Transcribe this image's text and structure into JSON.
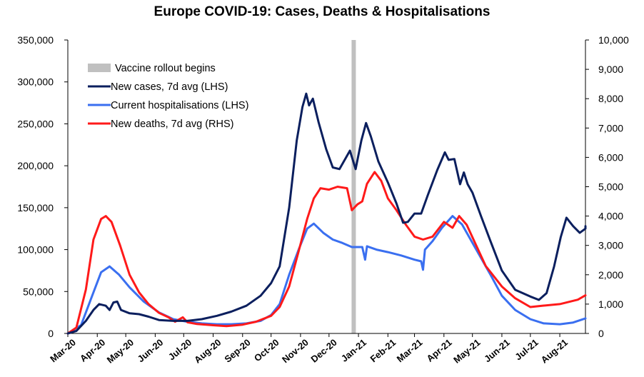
{
  "chart_data": {
    "type": "line",
    "title": "Europe COVID-19: Cases, Deaths & Hospitalisations",
    "x_labels": [
      "Mar-20",
      "Apr-20",
      "May-20",
      "Jun-20",
      "Jul-20",
      "Aug-20",
      "Sep-20",
      "Oct-20",
      "Nov-20",
      "Dec-20",
      "Jan-21",
      "Feb-21",
      "Mar-21",
      "Apr-21",
      "May-21",
      "Jun-21",
      "Jul-21",
      "Aug-21"
    ],
    "x_range": [
      "2020-03-01",
      "2021-08-28"
    ],
    "y_left": {
      "ylim": [
        0,
        350000
      ],
      "ticks": [
        "0",
        "50,000",
        "100,000",
        "150,000",
        "200,000",
        "250,000",
        "300,000",
        "350,000"
      ],
      "tick_values": [
        0,
        50000,
        100000,
        150000,
        200000,
        250000,
        300000,
        350000
      ]
    },
    "y_right": {
      "ylim": [
        0,
        10000
      ],
      "ticks": [
        "0",
        "1,000",
        "2,000",
        "3,000",
        "4,000",
        "5,000",
        "6,000",
        "7,000",
        "8,000",
        "9,000",
        "10,000"
      ],
      "tick_values": [
        0,
        1000,
        2000,
        3000,
        4000,
        5000,
        6000,
        7000,
        8000,
        9000,
        10000
      ]
    },
    "grid": false,
    "legend_position": "top-left",
    "annotations": [
      {
        "type": "vertical-band",
        "label": "Vaccine rollout begins",
        "x": "2020-12-27",
        "color": "#c0c0c0"
      }
    ],
    "series": [
      {
        "name": "New cases, 7d avg (LHS)",
        "axis": "left",
        "color": "#0b1f5e",
        "points": [
          [
            "2020-03-01",
            0
          ],
          [
            "2020-03-10",
            3000
          ],
          [
            "2020-03-20",
            15000
          ],
          [
            "2020-03-28",
            28000
          ],
          [
            "2020-04-03",
            35000
          ],
          [
            "2020-04-10",
            33000
          ],
          [
            "2020-04-14",
            28000
          ],
          [
            "2020-04-18",
            37000
          ],
          [
            "2020-04-22",
            38000
          ],
          [
            "2020-04-26",
            28000
          ],
          [
            "2020-05-05",
            24000
          ],
          [
            "2020-05-15",
            23000
          ],
          [
            "2020-05-25",
            20000
          ],
          [
            "2020-06-05",
            16000
          ],
          [
            "2020-06-20",
            15000
          ],
          [
            "2020-07-05",
            15000
          ],
          [
            "2020-07-20",
            17000
          ],
          [
            "2020-08-05",
            21000
          ],
          [
            "2020-08-20",
            26000
          ],
          [
            "2020-09-05",
            33000
          ],
          [
            "2020-09-20",
            45000
          ],
          [
            "2020-10-01",
            60000
          ],
          [
            "2020-10-10",
            80000
          ],
          [
            "2020-10-20",
            150000
          ],
          [
            "2020-10-28",
            230000
          ],
          [
            "2020-11-03",
            270000
          ],
          [
            "2020-11-07",
            286000
          ],
          [
            "2020-11-10",
            272000
          ],
          [
            "2020-11-14",
            280000
          ],
          [
            "2020-11-20",
            252000
          ],
          [
            "2020-11-28",
            220000
          ],
          [
            "2020-12-05",
            198000
          ],
          [
            "2020-12-12",
            196000
          ],
          [
            "2020-12-19",
            210000
          ],
          [
            "2020-12-23",
            218000
          ],
          [
            "2020-12-29",
            196000
          ],
          [
            "2021-01-04",
            230000
          ],
          [
            "2021-01-09",
            251000
          ],
          [
            "2021-01-14",
            235000
          ],
          [
            "2021-01-22",
            205000
          ],
          [
            "2021-02-01",
            180000
          ],
          [
            "2021-02-10",
            155000
          ],
          [
            "2021-02-17",
            132000
          ],
          [
            "2021-02-22",
            133000
          ],
          [
            "2021-03-01",
            143000
          ],
          [
            "2021-03-08",
            143000
          ],
          [
            "2021-03-15",
            165000
          ],
          [
            "2021-03-25",
            195000
          ],
          [
            "2021-04-02",
            216000
          ],
          [
            "2021-04-06",
            207000
          ],
          [
            "2021-04-12",
            208000
          ],
          [
            "2021-04-18",
            178000
          ],
          [
            "2021-04-22",
            192000
          ],
          [
            "2021-04-26",
            178000
          ],
          [
            "2021-05-01",
            168000
          ],
          [
            "2021-05-10",
            140000
          ],
          [
            "2021-05-20",
            110000
          ],
          [
            "2021-06-01",
            75000
          ],
          [
            "2021-06-15",
            52000
          ],
          [
            "2021-07-01",
            44000
          ],
          [
            "2021-07-10",
            40000
          ],
          [
            "2021-07-18",
            48000
          ],
          [
            "2021-07-26",
            80000
          ],
          [
            "2021-08-02",
            115000
          ],
          [
            "2021-08-08",
            138000
          ],
          [
            "2021-08-15",
            128000
          ],
          [
            "2021-08-22",
            120000
          ],
          [
            "2021-08-28",
            125000
          ],
          [
            "2021-09-02",
            128000
          ]
        ]
      },
      {
        "name": "Current hospitalisations (LHS)",
        "axis": "left",
        "color": "#3a6ff0",
        "points": [
          [
            "2020-03-01",
            0
          ],
          [
            "2020-03-15",
            10000
          ],
          [
            "2020-03-25",
            40000
          ],
          [
            "2020-04-05",
            73000
          ],
          [
            "2020-04-14",
            80000
          ],
          [
            "2020-04-24",
            70000
          ],
          [
            "2020-05-05",
            55000
          ],
          [
            "2020-05-20",
            38000
          ],
          [
            "2020-06-05",
            25000
          ],
          [
            "2020-06-20",
            17000
          ],
          [
            "2020-07-05",
            14000
          ],
          [
            "2020-07-20",
            12000
          ],
          [
            "2020-08-05",
            11000
          ],
          [
            "2020-08-20",
            11000
          ],
          [
            "2020-09-05",
            12000
          ],
          [
            "2020-09-20",
            15000
          ],
          [
            "2020-10-01",
            22000
          ],
          [
            "2020-10-10",
            35000
          ],
          [
            "2020-10-20",
            70000
          ],
          [
            "2020-10-30",
            100000
          ],
          [
            "2020-11-08",
            125000
          ],
          [
            "2020-11-15",
            131000
          ],
          [
            "2020-11-25",
            120000
          ],
          [
            "2020-12-05",
            112000
          ],
          [
            "2020-12-15",
            108000
          ],
          [
            "2020-12-25",
            103000
          ],
          [
            "2021-01-05",
            103000
          ],
          [
            "2021-01-08",
            88000
          ],
          [
            "2021-01-10",
            104000
          ],
          [
            "2021-01-20",
            100000
          ],
          [
            "2021-02-01",
            97000
          ],
          [
            "2021-02-15",
            93000
          ],
          [
            "2021-03-01",
            88000
          ],
          [
            "2021-03-08",
            86000
          ],
          [
            "2021-03-10",
            76000
          ],
          [
            "2021-03-12",
            100000
          ],
          [
            "2021-03-20",
            110000
          ],
          [
            "2021-03-30",
            126000
          ],
          [
            "2021-04-10",
            140000
          ],
          [
            "2021-04-20",
            130000
          ],
          [
            "2021-04-30",
            110000
          ],
          [
            "2021-05-10",
            90000
          ],
          [
            "2021-05-20",
            70000
          ],
          [
            "2021-06-01",
            45000
          ],
          [
            "2021-06-15",
            28000
          ],
          [
            "2021-07-01",
            17000
          ],
          [
            "2021-07-15",
            12000
          ],
          [
            "2021-08-01",
            11000
          ],
          [
            "2021-08-15",
            13000
          ],
          [
            "2021-09-02",
            18000
          ]
        ]
      },
      {
        "name": "New deaths, 7d avg (RHS)",
        "axis": "right",
        "color": "#ff1a1a",
        "points": [
          [
            "2020-03-01",
            0
          ],
          [
            "2020-03-10",
            200
          ],
          [
            "2020-03-20",
            1500
          ],
          [
            "2020-03-28",
            3200
          ],
          [
            "2020-04-05",
            3900
          ],
          [
            "2020-04-10",
            4000
          ],
          [
            "2020-04-16",
            3800
          ],
          [
            "2020-04-25",
            3000
          ],
          [
            "2020-05-05",
            2000
          ],
          [
            "2020-05-15",
            1400
          ],
          [
            "2020-05-25",
            1000
          ],
          [
            "2020-06-05",
            700
          ],
          [
            "2020-06-15",
            550
          ],
          [
            "2020-06-22",
            400
          ],
          [
            "2020-06-30",
            550
          ],
          [
            "2020-07-05",
            380
          ],
          [
            "2020-07-15",
            320
          ],
          [
            "2020-08-01",
            280
          ],
          [
            "2020-08-15",
            250
          ],
          [
            "2020-09-01",
            300
          ],
          [
            "2020-09-15",
            400
          ],
          [
            "2020-10-01",
            600
          ],
          [
            "2020-10-10",
            900
          ],
          [
            "2020-10-20",
            1600
          ],
          [
            "2020-10-30",
            2800
          ],
          [
            "2020-11-08",
            3900
          ],
          [
            "2020-11-15",
            4600
          ],
          [
            "2020-11-22",
            4950
          ],
          [
            "2020-12-01",
            4900
          ],
          [
            "2020-12-10",
            5000
          ],
          [
            "2020-12-20",
            4950
          ],
          [
            "2020-12-25",
            4200
          ],
          [
            "2020-12-31",
            4400
          ],
          [
            "2021-01-05",
            4500
          ],
          [
            "2021-01-10",
            5100
          ],
          [
            "2021-01-18",
            5500
          ],
          [
            "2021-01-25",
            5200
          ],
          [
            "2021-02-01",
            4600
          ],
          [
            "2021-02-10",
            4200
          ],
          [
            "2021-02-20",
            3700
          ],
          [
            "2021-03-01",
            3300
          ],
          [
            "2021-03-10",
            3200
          ],
          [
            "2021-03-20",
            3300
          ],
          [
            "2021-04-01",
            3800
          ],
          [
            "2021-04-10",
            3600
          ],
          [
            "2021-04-17",
            4000
          ],
          [
            "2021-04-25",
            3700
          ],
          [
            "2021-05-05",
            3000
          ],
          [
            "2021-05-15",
            2300
          ],
          [
            "2021-06-01",
            1600
          ],
          [
            "2021-06-15",
            1200
          ],
          [
            "2021-07-01",
            900
          ],
          [
            "2021-07-15",
            950
          ],
          [
            "2021-08-01",
            1000
          ],
          [
            "2021-08-20",
            1150
          ],
          [
            "2021-09-02",
            1300
          ]
        ]
      }
    ]
  }
}
